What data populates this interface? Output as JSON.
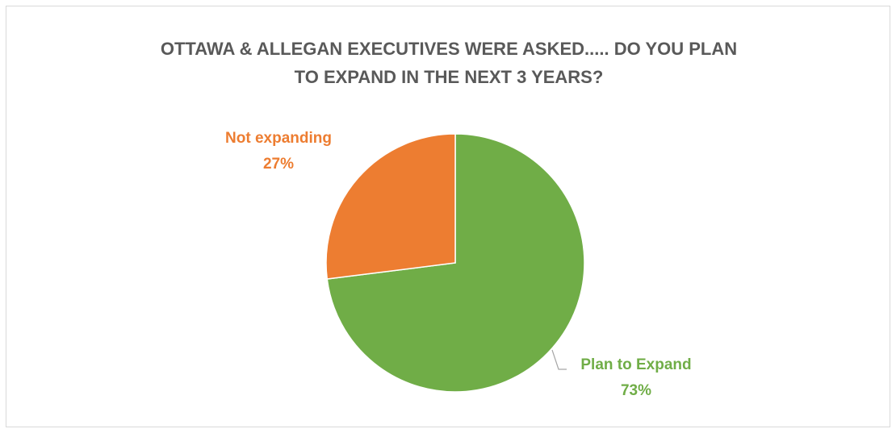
{
  "chart_data": {
    "type": "pie",
    "title_lines": [
      "OTTAWA & ALLEGAN EXECUTIVES WERE ASKED..... DO YOU PLAN",
      "TO EXPAND IN THE NEXT 3 YEARS?"
    ],
    "slices": [
      {
        "label": "Plan to Expand",
        "value": 73,
        "value_label": "73%",
        "color": "#70ad47"
      },
      {
        "label": "Not expanding",
        "value": 27,
        "value_label": "27%",
        "color": "#ed7d31"
      }
    ],
    "legend": "none",
    "leader_line_color": "#a6a6a6"
  }
}
